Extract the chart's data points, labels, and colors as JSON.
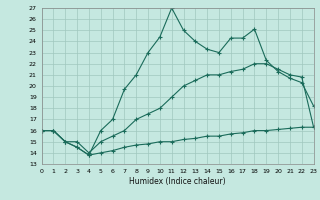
{
  "title": "",
  "xlabel": "Humidex (Indice chaleur)",
  "bg_color": "#c5e8e0",
  "line_color": "#1a6b5a",
  "grid_color": "#a0c8be",
  "xlim": [
    0,
    23
  ],
  "ylim": [
    13,
    27
  ],
  "xticks": [
    0,
    1,
    2,
    3,
    4,
    5,
    6,
    7,
    8,
    9,
    10,
    11,
    12,
    13,
    14,
    15,
    16,
    17,
    18,
    19,
    20,
    21,
    22,
    23
  ],
  "yticks": [
    13,
    14,
    15,
    16,
    17,
    18,
    19,
    20,
    21,
    22,
    23,
    24,
    25,
    26,
    27
  ],
  "line1_x": [
    0,
    1,
    2,
    3,
    4,
    5,
    6,
    7,
    8,
    9,
    10,
    11,
    12,
    13,
    14,
    15,
    16,
    17,
    18,
    19,
    20,
    21,
    22,
    23
  ],
  "line1_y": [
    16,
    16,
    15,
    14.5,
    13.8,
    16,
    17,
    19.7,
    21,
    23,
    24.4,
    27,
    25,
    24,
    23.3,
    23,
    24.3,
    24.3,
    25.1,
    22.3,
    21.3,
    20.7,
    20.3,
    18.2
  ],
  "line2_x": [
    0,
    1,
    2,
    3,
    4,
    5,
    6,
    7,
    8,
    9,
    10,
    11,
    12,
    13,
    14,
    15,
    16,
    17,
    18,
    19,
    20,
    21,
    22,
    23
  ],
  "line2_y": [
    16,
    16,
    15,
    15,
    14,
    15,
    15.5,
    16,
    17,
    17.5,
    18,
    19,
    20,
    20.5,
    21,
    21,
    21.3,
    21.5,
    22,
    22,
    21.5,
    21,
    20.8,
    16.3
  ],
  "line3_x": [
    0,
    1,
    2,
    3,
    4,
    5,
    6,
    7,
    8,
    9,
    10,
    11,
    12,
    13,
    14,
    15,
    16,
    17,
    18,
    19,
    20,
    21,
    22,
    23
  ],
  "line3_y": [
    16,
    16,
    15,
    14.5,
    13.8,
    14,
    14.2,
    14.5,
    14.7,
    14.8,
    15,
    15,
    15.2,
    15.3,
    15.5,
    15.5,
    15.7,
    15.8,
    16,
    16,
    16.1,
    16.2,
    16.3,
    16.3
  ]
}
